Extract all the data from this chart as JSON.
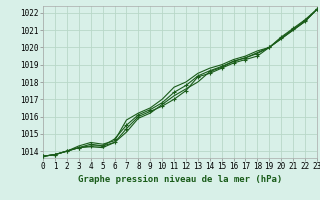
{
  "background_color": "#d8f0e8",
  "grid_color": "#b8d8c8",
  "line_color": "#1a5c1a",
  "title": "Graphe pression niveau de la mer (hPa)",
  "ylabel_values": [
    1014,
    1015,
    1016,
    1017,
    1018,
    1019,
    1020,
    1021,
    1022
  ],
  "xlim": [
    0,
    23
  ],
  "ylim": [
    1013.6,
    1022.4
  ],
  "xticks": [
    0,
    1,
    2,
    3,
    4,
    5,
    6,
    7,
    8,
    9,
    10,
    11,
    12,
    13,
    14,
    15,
    16,
    17,
    18,
    19,
    20,
    21,
    22,
    23
  ],
  "series": [
    [
      1013.7,
      1013.8,
      1014.0,
      1014.2,
      1014.3,
      1014.3,
      1014.5,
      1015.3,
      1016.0,
      1016.3,
      1016.6,
      1017.0,
      1017.5,
      1018.3,
      1018.5,
      1018.8,
      1019.1,
      1019.3,
      1019.5,
      1020.0,
      1020.6,
      1021.1,
      1021.6,
      1022.2
    ],
    [
      1013.7,
      1013.8,
      1014.0,
      1014.3,
      1014.5,
      1014.4,
      1014.6,
      1015.8,
      1016.2,
      1016.5,
      1017.0,
      1017.7,
      1018.0,
      1018.5,
      1018.8,
      1019.0,
      1019.3,
      1019.5,
      1019.8,
      1020.0,
      1020.5,
      1021.0,
      1021.5,
      1022.2
    ],
    [
      1013.7,
      1013.8,
      1014.0,
      1014.2,
      1014.4,
      1014.3,
      1014.7,
      1015.5,
      1016.1,
      1016.4,
      1016.8,
      1017.4,
      1017.8,
      1018.35,
      1018.65,
      1018.9,
      1019.2,
      1019.4,
      1019.65,
      1020.0,
      1020.55,
      1021.05,
      1021.55,
      1022.2
    ],
    [
      1013.7,
      1013.8,
      1014.0,
      1014.2,
      1014.25,
      1014.2,
      1014.5,
      1015.1,
      1015.9,
      1016.2,
      1016.7,
      1017.2,
      1017.6,
      1018.0,
      1018.6,
      1018.85,
      1019.2,
      1019.4,
      1019.7,
      1020.0,
      1020.5,
      1021.0,
      1021.5,
      1022.2
    ]
  ],
  "marker_series": [
    0,
    2
  ],
  "marker": "+",
  "markersize": 3,
  "markeredgewidth": 0.8,
  "linewidth": 0.8,
  "tick_fontsize": 5.5,
  "title_fontsize": 6.5,
  "title_fontweight": "bold"
}
